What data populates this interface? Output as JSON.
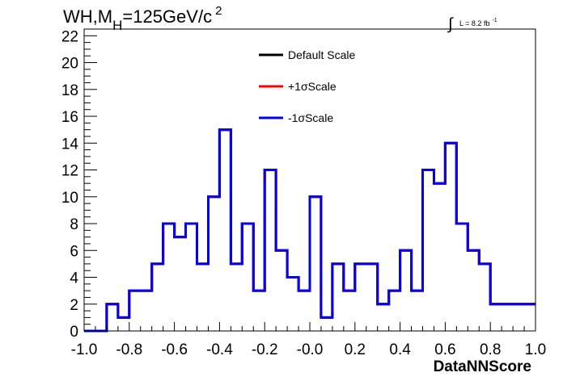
{
  "chart_data": {
    "type": "line",
    "title": {
      "main": "WH,M",
      "sub": "H",
      "rest": "=125GeV/c",
      "sup": "2"
    },
    "lumi": {
      "symbol": "∫",
      "text": "L = 8.2 fb",
      "sup": "-1"
    },
    "xlabel": "DataNNScore",
    "ylabel": "",
    "xlim": [
      -1.0,
      1.0
    ],
    "ylim": [
      0,
      22.5
    ],
    "x_ticks": [
      -1.0,
      -0.8,
      -0.6,
      -0.4,
      -0.2,
      0.0,
      0.2,
      0.4,
      0.6,
      0.8,
      1.0
    ],
    "x_tick_labels": [
      "-1.0",
      "-0.8",
      "-0.6",
      "-0.4",
      "-0.2",
      "-0.0",
      "0.2",
      "0.4",
      "0.6",
      "0.8",
      "1.0"
    ],
    "y_ticks": [
      0,
      2,
      4,
      6,
      8,
      10,
      12,
      14,
      16,
      18,
      20,
      22
    ],
    "y_tick_labels": [
      "0",
      "2",
      "4",
      "6",
      "8",
      "10",
      "12",
      "14",
      "16",
      "18",
      "20",
      "22"
    ],
    "bin_edges": [
      -1.0,
      -0.9,
      -0.85,
      -0.8,
      -0.75,
      -0.7,
      -0.65,
      -0.6,
      -0.55,
      -0.5,
      -0.45,
      -0.4,
      -0.35,
      -0.3,
      -0.25,
      -0.2,
      -0.15,
      -0.1,
      -0.05,
      0.0,
      0.05,
      0.1,
      0.15,
      0.2,
      0.25,
      0.3,
      0.35,
      0.4,
      0.45,
      0.5,
      0.55,
      0.6,
      0.65,
      0.7,
      0.75,
      0.8,
      1.0
    ],
    "series": [
      {
        "name": "Default Scale",
        "color": "#000000",
        "values": [
          0,
          2,
          1,
          3,
          3,
          5,
          8,
          7,
          8,
          5,
          10,
          15,
          5,
          8,
          3,
          12,
          6,
          4,
          3,
          10,
          1,
          5,
          3,
          5,
          5,
          2,
          3,
          6,
          3,
          12,
          11,
          14,
          8,
          6,
          5,
          2
        ]
      },
      {
        "name": "+1σScale",
        "color": "#ff0000",
        "values": [
          0,
          2,
          1,
          3,
          3,
          5,
          8,
          7,
          8,
          5,
          10,
          15,
          5,
          8,
          3,
          12,
          6,
          4,
          3,
          10,
          1,
          5,
          3,
          5,
          5,
          2,
          3,
          6,
          3,
          12,
          11,
          14,
          8,
          6,
          5,
          2
        ]
      },
      {
        "name": "-1σScale",
        "color": "#0000ee",
        "values": [
          0,
          2,
          1,
          3,
          3,
          5,
          8,
          7,
          8,
          5,
          10,
          15,
          5,
          8,
          3,
          12,
          6,
          4,
          3,
          10,
          1,
          5,
          3,
          5,
          5,
          2,
          3,
          6,
          3,
          12,
          11,
          14,
          8,
          6,
          5,
          2
        ]
      }
    ],
    "legend_position": "top-center",
    "grid": false
  }
}
